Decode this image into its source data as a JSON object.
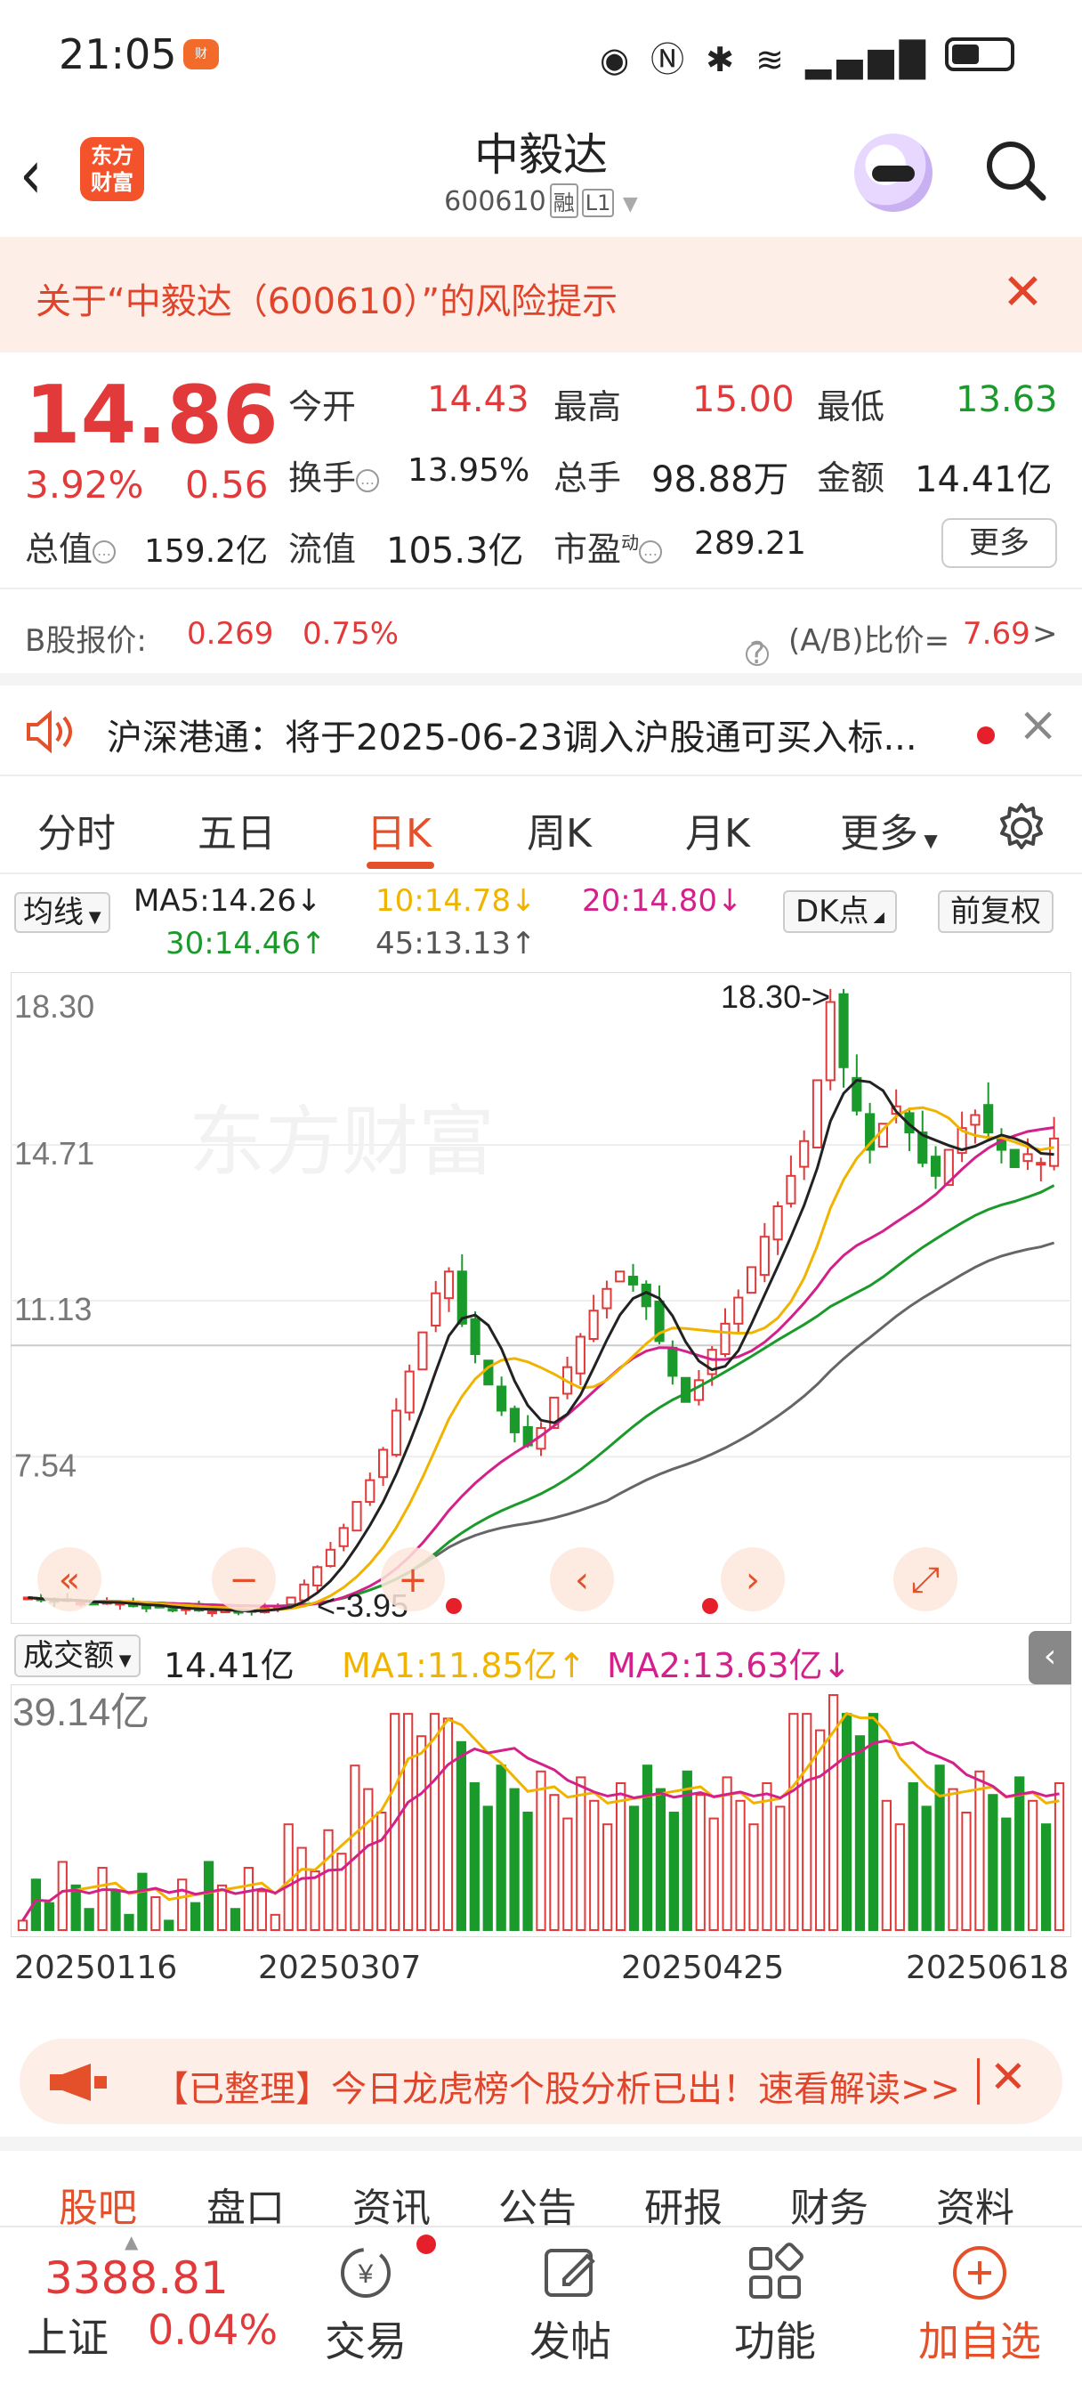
{
  "status_bar": {
    "time": "21:05"
  },
  "header": {
    "title": "中毅达",
    "code": "600610",
    "tag1": "融",
    "tag2": "L1",
    "logo_line1": "东方",
    "logo_line2": "财富"
  },
  "risk_banner": {
    "text": "关于“中毅达（600610）”的风险提示"
  },
  "quote": {
    "price": "14.86",
    "change_pct": "3.92%",
    "change": "0.56",
    "open_label": "今开",
    "open": "14.43",
    "high_label": "最高",
    "high": "15.00",
    "low_label": "最低",
    "low": "13.63",
    "turnover_label": "换手",
    "turnover": "13.95%",
    "volume_label": "总手",
    "volume": "98.88万",
    "amount_label": "金额",
    "amount": "14.41亿",
    "mktcap_label": "总值",
    "mktcap": "159.2亿",
    "float_label": "流值",
    "float": "105.3亿",
    "pe_label": "市盈",
    "pe_sup": "动",
    "pe": "289.21",
    "more_label": "更多"
  },
  "b_share": {
    "label": "B股报价:",
    "price": "0.269",
    "pct": "0.75%",
    "ratio_label": "(A/B)比价=",
    "ratio": "7.69"
  },
  "notice": {
    "text": "沪深港通：将于2025-06-23调入沪股通可买入标..."
  },
  "tabs": [
    {
      "label": "分时"
    },
    {
      "label": "五日"
    },
    {
      "label": "日K"
    },
    {
      "label": "周K"
    },
    {
      "label": "月K"
    },
    {
      "label": "更多"
    }
  ],
  "ma_legend": {
    "selector": "均线",
    "ma5": "MA5:14.26↓",
    "ma10": "10:14.78↓",
    "ma20": "20:14.80↓",
    "ma30": "30:14.46↑",
    "ma45": "45:13.13↑",
    "dk": "DK点",
    "adjust": "前复权"
  },
  "colors": {
    "ma5": "#222222",
    "ma10": "#f0b400",
    "ma20": "#d4208a",
    "ma30": "#1a9a2a",
    "ma45": "#666666",
    "up": "#e23a3a",
    "down": "#1a9a2a"
  },
  "chart_data": {
    "type": "candlestick",
    "y_ticks": [
      "18.30",
      "14.71",
      "11.13",
      "7.54"
    ],
    "ylim": [
      3.9,
      18.4
    ],
    "high_marker": "18.30->",
    "low_marker": "<-3.95",
    "x_ticks": [
      "20250116",
      "20250307",
      "20250425",
      "20250618"
    ],
    "candles_close": [
      4.3,
      4.25,
      4.2,
      4.22,
      4.18,
      4.15,
      4.2,
      4.18,
      4.1,
      4.05,
      4.08,
      4.02,
      4.05,
      4.0,
      3.98,
      4.02,
      3.95,
      4.0,
      4.05,
      4.1,
      4.3,
      4.6,
      5.0,
      5.4,
      5.9,
      6.5,
      7.0,
      7.7,
      8.6,
      9.5,
      10.4,
      11.3,
      11.8,
      10.6,
      9.9,
      9.2,
      8.6,
      8.1,
      7.8,
      8.2,
      8.9,
      9.6,
      10.3,
      10.9,
      11.4,
      11.8,
      11.5,
      11.0,
      10.2,
      9.4,
      8.8,
      9.3,
      10.0,
      10.6,
      11.2,
      11.9,
      12.6,
      13.3,
      14.0,
      14.8,
      16.2,
      18.0,
      16.5,
      15.5,
      14.6,
      15.2,
      15.6,
      15.0,
      14.3,
      14.0,
      14.6,
      15.1,
      15.4,
      15.0,
      14.6,
      14.2,
      14.5,
      14.3,
      14.86
    ],
    "volume_ylabel": "39.14亿",
    "volume": "14.41亿",
    "vol_ma1": "MA1:11.85亿↑",
    "vol_ma2": "MA2:13.63亿↓"
  },
  "ad_banner": {
    "text": "【已整理】今日龙虎榜个股分析已出！速看解读>>"
  },
  "sub_tabs": [
    "股吧",
    "盘口",
    "资讯",
    "公告",
    "研报",
    "财务",
    "资料"
  ],
  "bottom_nav": {
    "index_value": "3388.81",
    "index_name": "上证",
    "index_pct": "0.04%",
    "items": [
      "交易",
      "发帖",
      "功能",
      "加自选"
    ]
  }
}
